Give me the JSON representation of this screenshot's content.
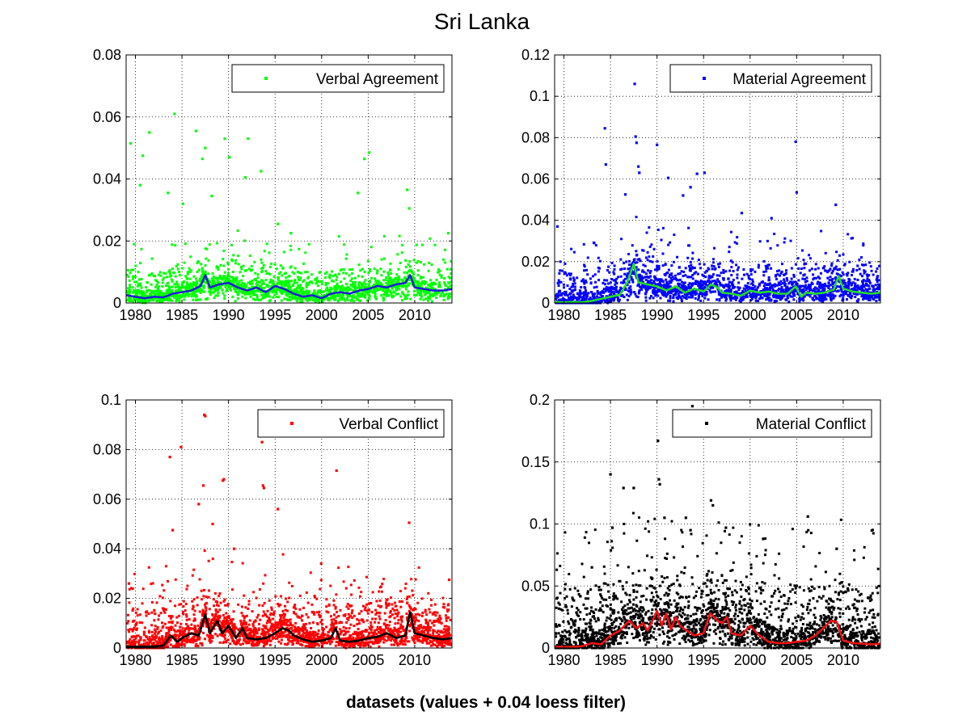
{
  "figure": {
    "title": "Sri Lanka",
    "xlabel": "datasets (values + 0.04 loess filter)"
  },
  "chart_data": [
    {
      "type": "scatter",
      "legend": "Verbal Agreement",
      "legend_position": "top-right",
      "grid": true,
      "xlim": [
        1979,
        2014
      ],
      "ylim": [
        0,
        0.08
      ],
      "xticks": [
        "1980",
        "1985",
        "1990",
        "1995",
        "2000",
        "2005",
        "2010"
      ],
      "yticks": [
        "0",
        "0.02",
        "0.04",
        "0.06",
        "0.08"
      ],
      "point_color": "#00ff00",
      "smooth_color": "#1f1fd0",
      "loess": {
        "x": [
          1979,
          1980,
          1981,
          1982,
          1983,
          1984,
          1985,
          1986,
          1987,
          1987.5,
          1988,
          1989,
          1990,
          1991,
          1992,
          1993,
          1994,
          1995,
          1996,
          1997,
          1998,
          1999,
          2000,
          2001,
          2002,
          2003,
          2004,
          2005,
          2006,
          2007,
          2008,
          2009,
          2009.5,
          2010,
          2011,
          2012,
          2013,
          2014
        ],
        "y": [
          0.0025,
          0.002,
          0.0015,
          0.002,
          0.0018,
          0.003,
          0.0035,
          0.004,
          0.0055,
          0.009,
          0.005,
          0.006,
          0.0065,
          0.005,
          0.004,
          0.005,
          0.0035,
          0.0055,
          0.0045,
          0.003,
          0.002,
          0.0025,
          0.0015,
          0.003,
          0.0035,
          0.003,
          0.004,
          0.0045,
          0.0055,
          0.005,
          0.006,
          0.0065,
          0.009,
          0.005,
          0.0045,
          0.004,
          0.004,
          0.0045
        ]
      },
      "band": [
        0,
        0.012
      ],
      "density": 1200,
      "outliers": [
        {
          "x": 1979.5,
          "y": 0.0515
        },
        {
          "x": 1980.8,
          "y": 0.0475
        },
        {
          "x": 1981.5,
          "y": 0.055
        },
        {
          "x": 1980.5,
          "y": 0.038
        },
        {
          "x": 1984.2,
          "y": 0.061
        },
        {
          "x": 1983.5,
          "y": 0.0355
        },
        {
          "x": 1986.5,
          "y": 0.0555
        },
        {
          "x": 1987.2,
          "y": 0.0465
        },
        {
          "x": 1987.5,
          "y": 0.05
        },
        {
          "x": 1989.6,
          "y": 0.053
        },
        {
          "x": 1990.1,
          "y": 0.047
        },
        {
          "x": 1992.1,
          "y": 0.053
        },
        {
          "x": 1991.8,
          "y": 0.0405
        },
        {
          "x": 1993.5,
          "y": 0.0425
        },
        {
          "x": 2003.9,
          "y": 0.0355
        },
        {
          "x": 2004.6,
          "y": 0.0465
        },
        {
          "x": 2005.1,
          "y": 0.0485
        },
        {
          "x": 2009.2,
          "y": 0.0365
        },
        {
          "x": 1985.1,
          "y": 0.032
        },
        {
          "x": 1988.2,
          "y": 0.0345
        },
        {
          "x": 2009.4,
          "y": 0.0305
        },
        {
          "x": 1996.7,
          "y": 0.0225
        },
        {
          "x": 2013.6,
          "y": 0.0225
        },
        {
          "x": 1995.3,
          "y": 0.0255
        }
      ]
    },
    {
      "type": "scatter",
      "legend": "Material Agreement",
      "legend_position": "top-right",
      "grid": true,
      "xlim": [
        1979,
        2014
      ],
      "ylim": [
        0,
        0.12
      ],
      "xticks": [
        "1980",
        "1985",
        "1990",
        "1995",
        "2000",
        "2005",
        "2010"
      ],
      "yticks": [
        "0",
        "0.02",
        "0.04",
        "0.06",
        "0.08",
        "0.1",
        "0.12"
      ],
      "point_color": "#0000ff",
      "smooth_color": "#22dd22",
      "loess": {
        "x": [
          1979,
          1980,
          1981,
          1982,
          1983,
          1984,
          1985,
          1986,
          1986.8,
          1987.5,
          1988,
          1989,
          1990,
          1991,
          1992,
          1993,
          1994,
          1995,
          1995.8,
          1996.5,
          1997,
          1998,
          1999,
          2000,
          2001,
          2002,
          2003,
          2004,
          2004.9,
          2005.5,
          2006,
          2007,
          2008,
          2009,
          2009.5,
          2010,
          2011,
          2012,
          2013,
          2014
        ],
        "y": [
          0.0005,
          0.0003,
          0.0005,
          0.0004,
          0.001,
          0.002,
          0.003,
          0.004,
          0.01,
          0.019,
          0.01,
          0.009,
          0.008,
          0.006,
          0.008,
          0.005,
          0.007,
          0.0055,
          0.009,
          0.0075,
          0.005,
          0.0045,
          0.0035,
          0.006,
          0.005,
          0.0055,
          0.0045,
          0.0045,
          0.008,
          0.003,
          0.005,
          0.0045,
          0.005,
          0.0065,
          0.013,
          0.007,
          0.0055,
          0.005,
          0.0045,
          0.005
        ]
      },
      "band": [
        0,
        0.02
      ],
      "density": 1300,
      "outliers": [
        {
          "x": 1984.4,
          "y": 0.0845
        },
        {
          "x": 1984.5,
          "y": 0.067
        },
        {
          "x": 1987.6,
          "y": 0.106
        },
        {
          "x": 1987.7,
          "y": 0.0805
        },
        {
          "x": 1987.8,
          "y": 0.0775
        },
        {
          "x": 1988.1,
          "y": 0.063
        },
        {
          "x": 1988.0,
          "y": 0.066
        },
        {
          "x": 1990.0,
          "y": 0.0765
        },
        {
          "x": 1991.2,
          "y": 0.0605
        },
        {
          "x": 1994.3,
          "y": 0.0625
        },
        {
          "x": 1995.1,
          "y": 0.063
        },
        {
          "x": 1993.6,
          "y": 0.056
        },
        {
          "x": 2004.9,
          "y": 0.078
        },
        {
          "x": 2005.0,
          "y": 0.0535
        },
        {
          "x": 2009.2,
          "y": 0.0475
        },
        {
          "x": 1979.3,
          "y": 0.037
        },
        {
          "x": 1999.1,
          "y": 0.0435
        },
        {
          "x": 1992.8,
          "y": 0.052
        },
        {
          "x": 1986.6,
          "y": 0.0525
        },
        {
          "x": 2002.3,
          "y": 0.041
        }
      ]
    },
    {
      "type": "scatter",
      "legend": "Verbal Conflict",
      "legend_position": "top-right",
      "grid": true,
      "xlim": [
        1979,
        2014
      ],
      "ylim": [
        0,
        0.1
      ],
      "xticks": [
        "1980",
        "1985",
        "1990",
        "1995",
        "2000",
        "2005",
        "2010"
      ],
      "yticks": [
        "0",
        "0.02",
        "0.04",
        "0.06",
        "0.08",
        "0.1"
      ],
      "point_color": "#ff0000",
      "smooth_color": "#000000",
      "loess": {
        "x": [
          1979,
          1980,
          1981,
          1982,
          1983,
          1983.8,
          1984.5,
          1985,
          1986,
          1986.8,
          1987.5,
          1988,
          1988.8,
          1989.3,
          1990,
          1990.8,
          1991.5,
          1992,
          1993,
          1994,
          1995,
          1995.8,
          1996.5,
          1997,
          1998,
          1999,
          2000,
          2001,
          2001.5,
          2002,
          2003,
          2004,
          2005,
          2006,
          2007,
          2008,
          2009,
          2009.5,
          2010,
          2011,
          2012,
          2013,
          2014
        ],
        "y": [
          0.0005,
          0.0005,
          0.0006,
          0.0006,
          0.001,
          0.005,
          0.0025,
          0.004,
          0.006,
          0.005,
          0.0135,
          0.006,
          0.011,
          0.006,
          0.009,
          0.004,
          0.008,
          0.004,
          0.0035,
          0.004,
          0.006,
          0.008,
          0.007,
          0.005,
          0.0035,
          0.0025,
          0.003,
          0.004,
          0.008,
          0.003,
          0.0025,
          0.003,
          0.004,
          0.0045,
          0.006,
          0.004,
          0.005,
          0.0145,
          0.006,
          0.005,
          0.004,
          0.0035,
          0.004
        ]
      },
      "band": [
        0,
        0.02
      ],
      "density": 1400,
      "outliers": [
        {
          "x": 1987.4,
          "y": 0.094
        },
        {
          "x": 1987.5,
          "y": 0.0935
        },
        {
          "x": 1984.9,
          "y": 0.081
        },
        {
          "x": 1983.7,
          "y": 0.077
        },
        {
          "x": 1993.6,
          "y": 0.083
        },
        {
          "x": 2001.6,
          "y": 0.0715
        },
        {
          "x": 1989.4,
          "y": 0.0675
        },
        {
          "x": 1989.5,
          "y": 0.068
        },
        {
          "x": 1993.7,
          "y": 0.0655
        },
        {
          "x": 1993.8,
          "y": 0.0645
        },
        {
          "x": 1987.3,
          "y": 0.0655
        },
        {
          "x": 1995.3,
          "y": 0.056
        },
        {
          "x": 2009.4,
          "y": 0.0505
        },
        {
          "x": 1984.0,
          "y": 0.0475
        },
        {
          "x": 1979.3,
          "y": 0.026
        },
        {
          "x": 1986.8,
          "y": 0.058
        },
        {
          "x": 2013.7,
          "y": 0.0275
        },
        {
          "x": 1988.3,
          "y": 0.05
        },
        {
          "x": 1990.6,
          "y": 0.04
        }
      ]
    },
    {
      "type": "scatter",
      "legend": "Material Conflict",
      "legend_position": "top-right",
      "grid": true,
      "xlim": [
        1979,
        2014
      ],
      "ylim": [
        0,
        0.2
      ],
      "xticks": [
        "1980",
        "1985",
        "1990",
        "1995",
        "2000",
        "2005",
        "2010"
      ],
      "yticks": [
        "0",
        "0.05",
        "0.1",
        "0.15",
        "0.2"
      ],
      "point_color": "#000000",
      "smooth_color": "#ee1111",
      "loess": {
        "x": [
          1979,
          1980,
          1981,
          1982,
          1983,
          1984,
          1985,
          1986,
          1987,
          1987.8,
          1988.5,
          1989,
          1990,
          1990.5,
          1991,
          1991.5,
          1992,
          1992.5,
          1993,
          1994,
          1995,
          1995.7,
          1996.5,
          1997,
          1997.5,
          1998,
          1999,
          2000,
          2001,
          2002,
          2003,
          2004,
          2005,
          2006,
          2007,
          2008,
          2008.7,
          2009.3,
          2010,
          2011,
          2012,
          2013,
          2014
        ],
        "y": [
          0.001,
          0.001,
          0.001,
          0.0015,
          0.004,
          0.003,
          0.01,
          0.014,
          0.022,
          0.016,
          0.02,
          0.014,
          0.03,
          0.018,
          0.028,
          0.015,
          0.025,
          0.018,
          0.015,
          0.01,
          0.012,
          0.028,
          0.022,
          0.02,
          0.025,
          0.012,
          0.01,
          0.018,
          0.01,
          0.005,
          0.004,
          0.004,
          0.005,
          0.006,
          0.01,
          0.017,
          0.022,
          0.021,
          0.006,
          0.004,
          0.0035,
          0.003,
          0.0035
        ]
      },
      "band": [
        0,
        0.06
      ],
      "density": 1500,
      "outliers": [
        {
          "x": 1993.8,
          "y": 0.195
        },
        {
          "x": 1990.1,
          "y": 0.167
        },
        {
          "x": 1985.0,
          "y": 0.14
        },
        {
          "x": 1986.4,
          "y": 0.129
        },
        {
          "x": 1987.5,
          "y": 0.129
        },
        {
          "x": 1990.2,
          "y": 0.136
        },
        {
          "x": 1990.3,
          "y": 0.132
        },
        {
          "x": 1995.8,
          "y": 0.119
        },
        {
          "x": 1996.0,
          "y": 0.115
        },
        {
          "x": 1993.1,
          "y": 0.105
        },
        {
          "x": 2006.2,
          "y": 0.106
        },
        {
          "x": 1993.6,
          "y": 0.095
        },
        {
          "x": 2009.3,
          "y": 0.08
        },
        {
          "x": 1990.8,
          "y": 0.105
        },
        {
          "x": 1985.2,
          "y": 0.097
        },
        {
          "x": 1997.4,
          "y": 0.097
        },
        {
          "x": 2001.4,
          "y": 0.088
        },
        {
          "x": 1983.0,
          "y": 0.065
        }
      ]
    }
  ]
}
